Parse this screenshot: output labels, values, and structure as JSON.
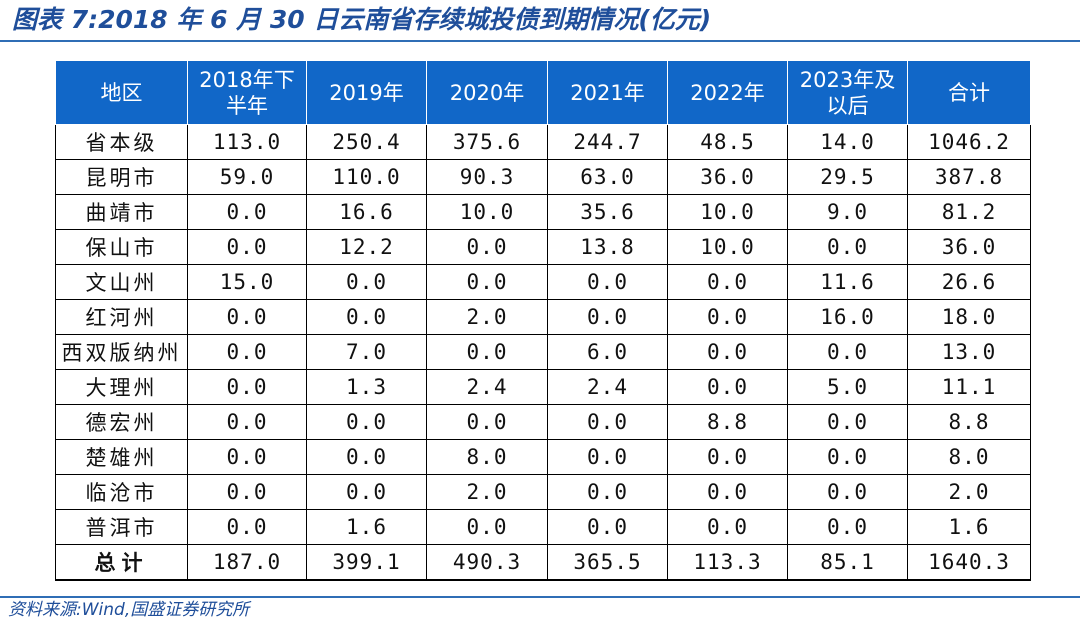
{
  "title": "图表 7:2018 年 6 月 30 日云南省存续城投债到期情况(亿元)",
  "source": "资料来源:Wind,国盛证券研究所",
  "table": {
    "headers": [
      "地区",
      "2018年下半年",
      "2019年",
      "2020年",
      "2021年",
      "2022年",
      "2023年及以后",
      "合计"
    ],
    "rows": [
      [
        "省本级",
        "113.0",
        "250.4",
        "375.6",
        "244.7",
        "48.5",
        "14.0",
        "1046.2"
      ],
      [
        "昆明市",
        "59.0",
        "110.0",
        "90.3",
        "63.0",
        "36.0",
        "29.5",
        "387.8"
      ],
      [
        "曲靖市",
        "0.0",
        "16.6",
        "10.0",
        "35.6",
        "10.0",
        "9.0",
        "81.2"
      ],
      [
        "保山市",
        "0.0",
        "12.2",
        "0.0",
        "13.8",
        "10.0",
        "0.0",
        "36.0"
      ],
      [
        "文山州",
        "15.0",
        "0.0",
        "0.0",
        "0.0",
        "0.0",
        "11.6",
        "26.6"
      ],
      [
        "红河州",
        "0.0",
        "0.0",
        "2.0",
        "0.0",
        "0.0",
        "16.0",
        "18.0"
      ],
      [
        "西双版纳州",
        "0.0",
        "7.0",
        "0.0",
        "6.0",
        "0.0",
        "0.0",
        "13.0"
      ],
      [
        "大理州",
        "0.0",
        "1.3",
        "2.4",
        "2.4",
        "0.0",
        "5.0",
        "11.1"
      ],
      [
        "德宏州",
        "0.0",
        "0.0",
        "0.0",
        "0.0",
        "8.8",
        "0.0",
        "8.8"
      ],
      [
        "楚雄州",
        "0.0",
        "0.0",
        "8.0",
        "0.0",
        "0.0",
        "0.0",
        "8.0"
      ],
      [
        "临沧市",
        "0.0",
        "0.0",
        "2.0",
        "0.0",
        "0.0",
        "0.0",
        "2.0"
      ],
      [
        "普洱市",
        "0.0",
        "1.6",
        "0.0",
        "0.0",
        "0.0",
        "0.0",
        "1.6"
      ]
    ],
    "total": [
      "总计",
      "187.0",
      "399.1",
      "490.3",
      "365.5",
      "113.3",
      "85.1",
      "1640.3"
    ]
  }
}
